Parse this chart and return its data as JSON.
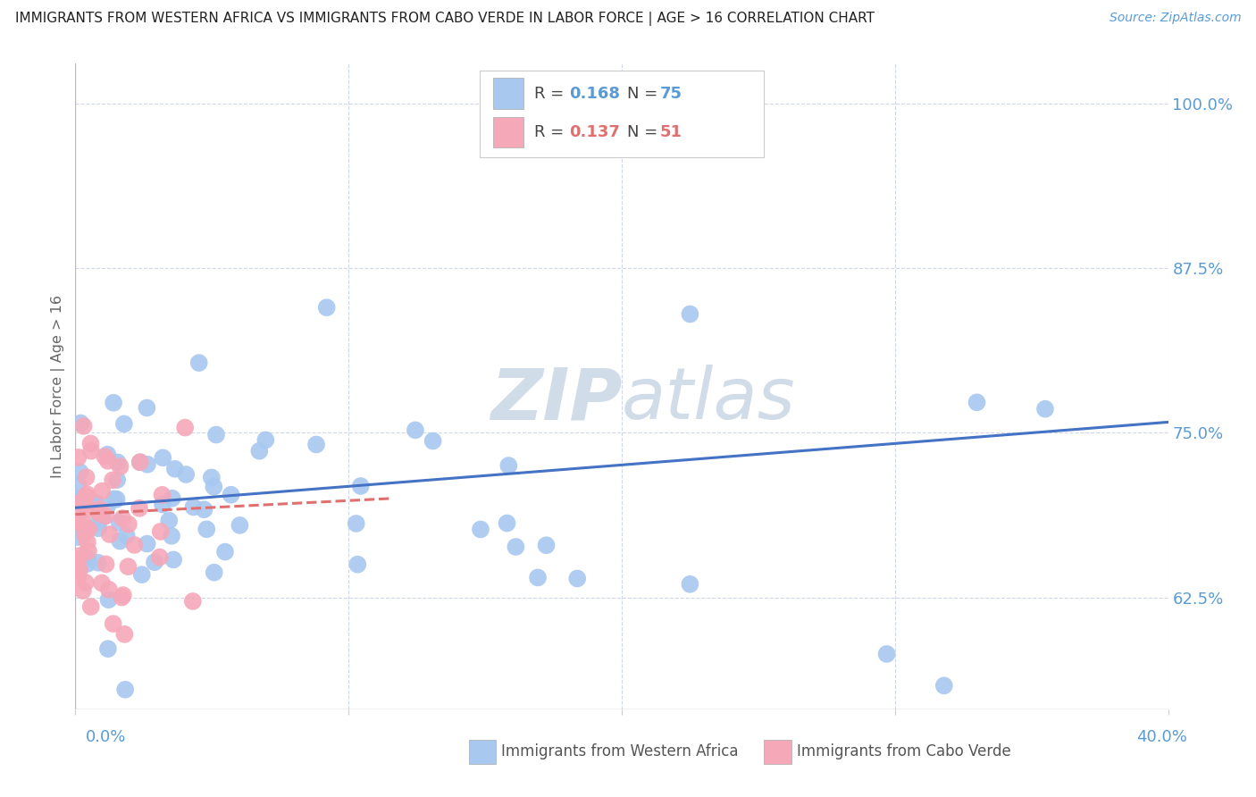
{
  "title": "IMMIGRANTS FROM WESTERN AFRICA VS IMMIGRANTS FROM CABO VERDE IN LABOR FORCE | AGE > 16 CORRELATION CHART",
  "source": "Source: ZipAtlas.com",
  "ylabel": "In Labor Force | Age > 16",
  "ytick_labels_right": [
    "100.0%",
    "87.5%",
    "75.0%",
    "62.5%"
  ],
  "ytick_values": [
    1.0,
    0.875,
    0.75,
    0.625
  ],
  "xlim": [
    0.0,
    0.4
  ],
  "ylim": [
    0.54,
    1.03
  ],
  "legend_blue_R": "R = 0.168",
  "legend_blue_N": "N = 75",
  "legend_pink_R": "R = 0.137",
  "legend_pink_N": "N = 51",
  "blue_color": "#a8c8f0",
  "pink_color": "#f5a8b8",
  "blue_line_color": "#4472c4",
  "pink_line_color": "#e07070",
  "axis_color": "#5b9bd5",
  "watermark_color": "#d0dce8",
  "background_color": "#ffffff",
  "grid_color": "#d0d8e8",
  "title_fontsize": 11,
  "blue_trend_x": [
    0.0,
    0.4
  ],
  "blue_trend_y": [
    0.693,
    0.758
  ],
  "pink_trend_x": [
    0.0,
    0.115
  ],
  "pink_trend_y": [
    0.688,
    0.7
  ]
}
